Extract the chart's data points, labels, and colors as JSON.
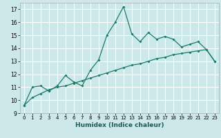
{
  "xlabel": "Humidex (Indice chaleur)",
  "bg_color": "#cce8e8",
  "grid_color": "#ffffff",
  "line_color": "#1a7a6a",
  "xlim": [
    -0.5,
    23.5
  ],
  "ylim": [
    9,
    17.5
  ],
  "yticks": [
    9,
    10,
    11,
    12,
    13,
    14,
    15,
    16,
    17
  ],
  "xticks": [
    0,
    1,
    2,
    3,
    4,
    5,
    6,
    7,
    8,
    9,
    10,
    11,
    12,
    13,
    14,
    15,
    16,
    17,
    18,
    19,
    20,
    21,
    22,
    23
  ],
  "series1_x": [
    0,
    1,
    2,
    3,
    4,
    5,
    6,
    7,
    8,
    9,
    10,
    11,
    12,
    13,
    14,
    15,
    16,
    17,
    18,
    19,
    20,
    21,
    22,
    23
  ],
  "series1_y": [
    9.6,
    11.0,
    11.1,
    10.7,
    11.1,
    11.9,
    11.4,
    11.1,
    12.3,
    13.1,
    15.0,
    16.0,
    17.2,
    15.1,
    14.5,
    15.2,
    14.7,
    14.9,
    14.7,
    14.1,
    14.3,
    14.5,
    13.9,
    13.0
  ],
  "series2_x": [
    0,
    1,
    2,
    3,
    4,
    5,
    6,
    7,
    8,
    9,
    10,
    11,
    12,
    13,
    14,
    15,
    16,
    17,
    18,
    19,
    20,
    21,
    22,
    23
  ],
  "series2_y": [
    9.6,
    10.2,
    10.5,
    10.8,
    11.0,
    11.1,
    11.3,
    11.5,
    11.7,
    11.9,
    12.1,
    12.3,
    12.5,
    12.7,
    12.8,
    13.0,
    13.2,
    13.3,
    13.5,
    13.6,
    13.7,
    13.8,
    13.9,
    13.0
  ]
}
